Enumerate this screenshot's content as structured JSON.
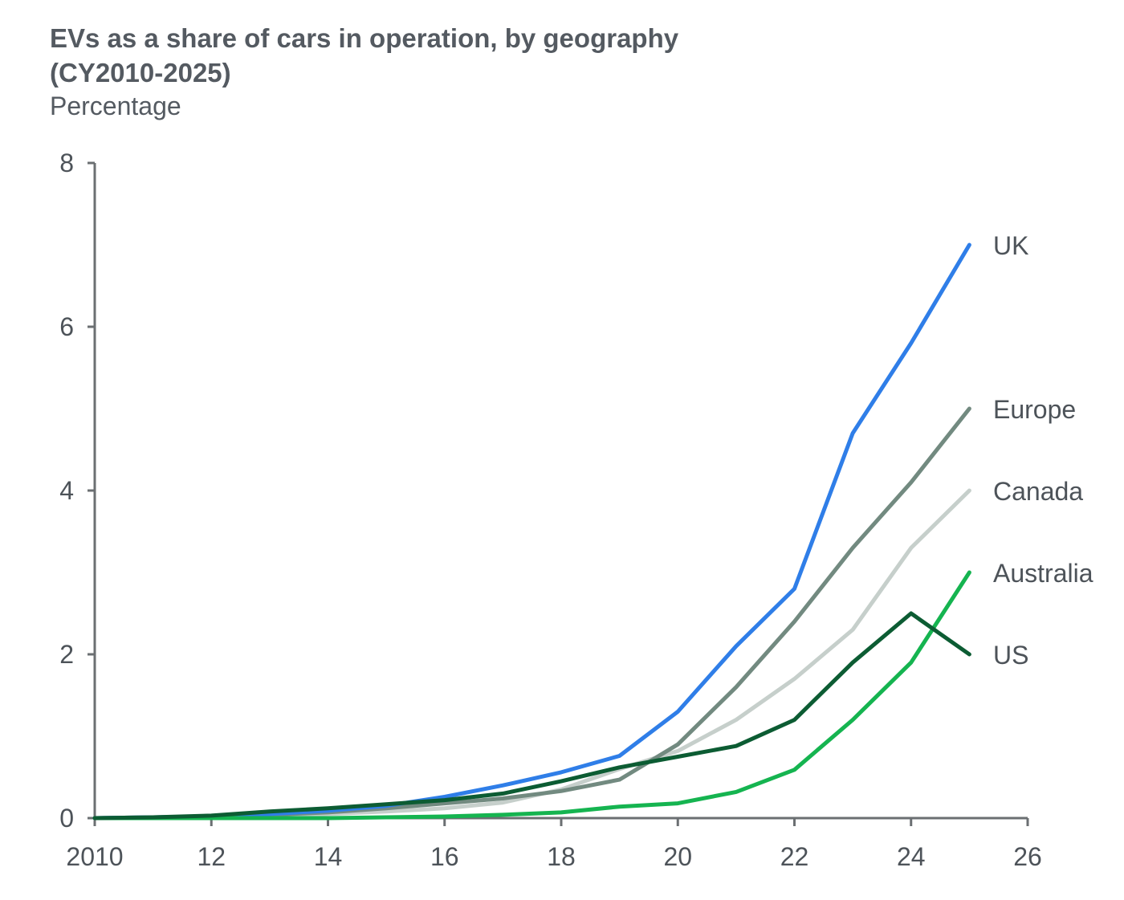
{
  "chart_data": {
    "type": "line",
    "title": "EVs as a share of cars in operation, by geography (CY2010-2025)",
    "title_line1": "EVs as a share of cars in operation, by geography",
    "title_line2": "(CY2010-2025)",
    "subtitle": "Percentage",
    "xlabel": "",
    "ylabel": "Percentage",
    "xlim": [
      2010,
      2026
    ],
    "ylim": [
      0,
      8
    ],
    "x_ticks": [
      2010,
      2012,
      2014,
      2016,
      2018,
      2020,
      2022,
      2024,
      2026
    ],
    "x_tick_labels": [
      "2010",
      "12",
      "14",
      "16",
      "18",
      "20",
      "22",
      "24",
      "26"
    ],
    "y_ticks": [
      0,
      2,
      4,
      6,
      8
    ],
    "y_tick_labels": [
      "0",
      "2",
      "4",
      "6",
      "8"
    ],
    "grid": false,
    "legend": "direct labels at line ends",
    "x": [
      2010,
      2011,
      2012,
      2013,
      2014,
      2015,
      2016,
      2017,
      2018,
      2019,
      2020,
      2021,
      2022,
      2023,
      2024,
      2025
    ],
    "series": [
      {
        "name": "UK",
        "color": "#2f7ee8",
        "values": [
          0,
          0.01,
          0.02,
          0.05,
          0.09,
          0.15,
          0.26,
          0.4,
          0.56,
          0.76,
          1.3,
          2.1,
          2.8,
          4.7,
          5.8,
          7.0
        ]
      },
      {
        "name": "Europe",
        "color": "#728a80",
        "values": [
          0,
          0.01,
          0.02,
          0.04,
          0.07,
          0.12,
          0.18,
          0.24,
          0.33,
          0.47,
          0.9,
          1.6,
          2.4,
          3.3,
          4.1,
          5.0
        ]
      },
      {
        "name": "Canada",
        "color": "#c6cfcb",
        "values": [
          0,
          0.01,
          0.01,
          0.03,
          0.05,
          0.08,
          0.12,
          0.19,
          0.35,
          0.6,
          0.82,
          1.2,
          1.7,
          2.3,
          3.3,
          4.0
        ]
      },
      {
        "name": "Australia",
        "color": "#15b450",
        "values": [
          0,
          0,
          0,
          0,
          0,
          0.01,
          0.02,
          0.04,
          0.07,
          0.14,
          0.18,
          0.32,
          0.59,
          1.2,
          1.9,
          3.0
        ]
      },
      {
        "name": "US",
        "color": "#0c5c33",
        "values": [
          0,
          0.01,
          0.03,
          0.08,
          0.12,
          0.17,
          0.22,
          0.3,
          0.45,
          0.62,
          0.75,
          0.88,
          1.2,
          1.9,
          2.5,
          2.0
        ]
      }
    ]
  }
}
